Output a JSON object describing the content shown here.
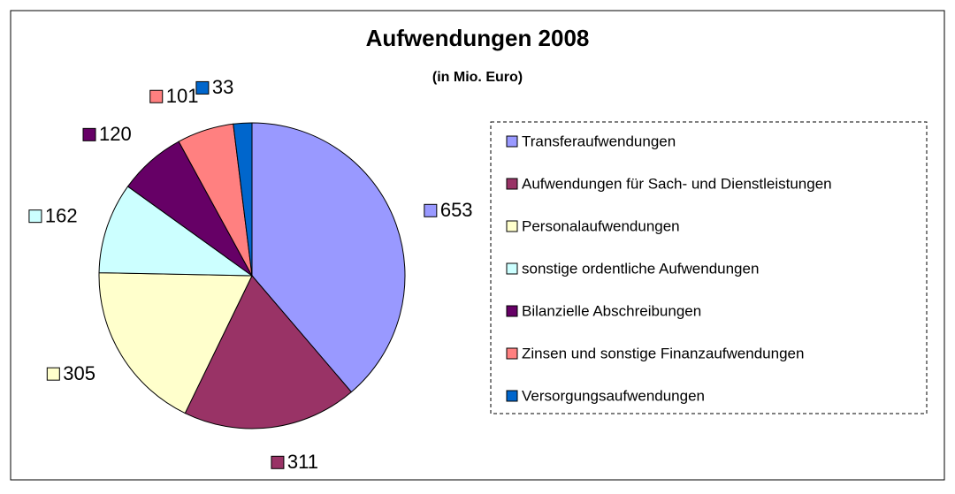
{
  "chart_data": {
    "type": "pie",
    "title": "Aufwendungen 2008",
    "subtitle": "(in Mio. Euro)",
    "categories": [
      "Transferaufwendungen",
      "Aufwendungen für Sach- und Dienstleistungen",
      "Personalaufwendungen",
      "sonstige ordentliche Aufwendungen",
      "Bilanzielle Abschreibungen",
      "Zinsen und sonstige Finanzaufwendungen",
      "Versorgungsaufwendungen"
    ],
    "values": [
      653,
      311,
      305,
      162,
      120,
      101,
      33
    ],
    "colors": [
      "#9999ff",
      "#993366",
      "#ffffcc",
      "#ccffff",
      "#660066",
      "#ff8080",
      "#0066cc"
    ],
    "legend": "right"
  }
}
